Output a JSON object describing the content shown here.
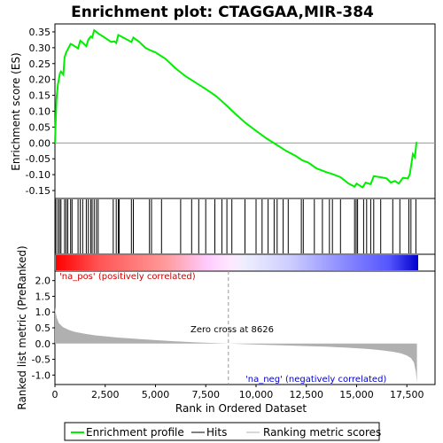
{
  "title": "Enrichment plot: CTAGGAA,MIR-384",
  "colors": {
    "enrichment_line": "#00ee00",
    "hits": "#000000",
    "metric_fill": "#b0b0b0",
    "zero_line": "#999999",
    "pos_label": "#cc0000",
    "neg_label": "#0000cc"
  },
  "legend": {
    "items": [
      "Enrichment profile",
      "Hits",
      "Ranking metric scores"
    ]
  },
  "chart_data": [
    {
      "type": "line",
      "panel": "enrichment",
      "ylabel": "Enrichment score (ES)",
      "ylim": [
        -0.175,
        0.375
      ],
      "xlim": [
        0,
        18900
      ],
      "yticks": [
        -0.15,
        -0.1,
        -0.05,
        0.0,
        0.05,
        0.1,
        0.15,
        0.2,
        0.25,
        0.3,
        0.35
      ],
      "ytick_labels": [
        "-0.15",
        "-0.10",
        "-0.05",
        "0.00",
        "0.05",
        "0.10",
        "0.15",
        "0.20",
        "0.25",
        "0.30",
        "0.35"
      ],
      "grid": false,
      "series": [
        {
          "name": "Enrichment profile",
          "x": [
            0,
            80,
            150,
            250,
            300,
            420,
            480,
            560,
            640,
            780,
            850,
            1150,
            1260,
            1380,
            1560,
            1660,
            1780,
            1850,
            1950,
            2060,
            2150,
            2400,
            2800,
            2950,
            3050,
            3150,
            3300,
            3600,
            3800,
            3900,
            4200,
            4500,
            4700,
            5000,
            5500,
            6000,
            6500,
            7000,
            7500,
            8000,
            8500,
            9000,
            9500,
            10000,
            10500,
            11000,
            11500,
            12000,
            12300,
            12600,
            13000,
            13500,
            13800,
            14200,
            14600,
            14900,
            15000,
            15300,
            15450,
            15700,
            15850,
            16200,
            16500,
            16700,
            16900,
            17100,
            17300,
            17550,
            17650,
            17800,
            17900,
            17980
          ],
          "y": [
            0.0,
            0.14,
            0.185,
            0.22,
            0.225,
            0.215,
            0.27,
            0.285,
            0.295,
            0.312,
            0.31,
            0.298,
            0.322,
            0.316,
            0.305,
            0.325,
            0.335,
            0.332,
            0.355,
            0.35,
            0.345,
            0.335,
            0.318,
            0.32,
            0.315,
            0.34,
            0.335,
            0.325,
            0.318,
            0.332,
            0.318,
            0.3,
            0.293,
            0.285,
            0.265,
            0.235,
            0.21,
            0.19,
            0.17,
            0.148,
            0.12,
            0.09,
            0.062,
            0.038,
            0.015,
            -0.005,
            -0.025,
            -0.042,
            -0.055,
            -0.062,
            -0.08,
            -0.092,
            -0.098,
            -0.108,
            -0.128,
            -0.138,
            -0.128,
            -0.14,
            -0.125,
            -0.13,
            -0.105,
            -0.108,
            -0.112,
            -0.125,
            -0.12,
            -0.128,
            -0.11,
            -0.112,
            -0.098,
            -0.035,
            -0.045,
            0.003
          ]
        }
      ]
    },
    {
      "type": "hits",
      "panel": "hits",
      "series": [
        {
          "name": "Hits",
          "x": [
            50,
            150,
            230,
            300,
            480,
            560,
            640,
            780,
            850,
            1150,
            1260,
            1380,
            1560,
            1660,
            1780,
            1850,
            1950,
            2060,
            2150,
            2900,
            3050,
            3150,
            3200,
            3800,
            3900,
            4700,
            4800,
            5300,
            6250,
            6800,
            7150,
            7500,
            7950,
            8300,
            8550,
            8800,
            9450,
            10000,
            10300,
            10600,
            10900,
            11050,
            11350,
            11600,
            12250,
            12350,
            12900,
            13300,
            13650,
            13800,
            14200,
            14900,
            14980,
            15050,
            15350,
            15500,
            15700,
            15850,
            16200,
            16800,
            17150,
            17600,
            17700,
            17950
          ]
        }
      ]
    },
    {
      "type": "area",
      "panel": "ranked_metric",
      "ylabel": "Ranked list metric (PreRanked)",
      "xlabel": "Rank in Ordered Dataset",
      "ylim": [
        -1.3,
        2.3
      ],
      "yticks": [
        -1.0,
        -0.5,
        0.0,
        0.5,
        1.0,
        1.5,
        2.0
      ],
      "ytick_labels": [
        "-1.0",
        "-0.5",
        "0.0",
        "0.5",
        "1.0",
        "1.5",
        "2.0"
      ],
      "xticks": [
        0,
        2500,
        5000,
        7500,
        10000,
        12500,
        15000,
        17500
      ],
      "xtick_labels": [
        "0",
        "2,500",
        "5,000",
        "7,500",
        "10,000",
        "12,500",
        "15,000",
        "17,500"
      ],
      "zero_cross": 8626,
      "series": [
        {
          "name": "Ranking metric scores",
          "x": [
            0,
            30,
            100,
            200,
            400,
            700,
            1000,
            1500,
            2000,
            3000,
            4000,
            5000,
            6000,
            7000,
            8000,
            8626,
            9500,
            10500,
            11500,
            12500,
            13500,
            14500,
            15500,
            16200,
            16800,
            17200,
            17500,
            17700,
            17850,
            17950,
            18000
          ],
          "y": [
            1.15,
            1.0,
            0.8,
            0.65,
            0.52,
            0.43,
            0.37,
            0.31,
            0.26,
            0.2,
            0.15,
            0.11,
            0.07,
            0.04,
            0.015,
            0.0,
            -0.02,
            -0.04,
            -0.06,
            -0.08,
            -0.1,
            -0.13,
            -0.17,
            -0.21,
            -0.26,
            -0.31,
            -0.38,
            -0.46,
            -0.6,
            -0.9,
            -1.25
          ]
        }
      ],
      "annotations": [
        "'na_pos' (positively correlated)",
        "Zero cross at 8626",
        "'na_neg' (negatively correlated)"
      ]
    }
  ]
}
